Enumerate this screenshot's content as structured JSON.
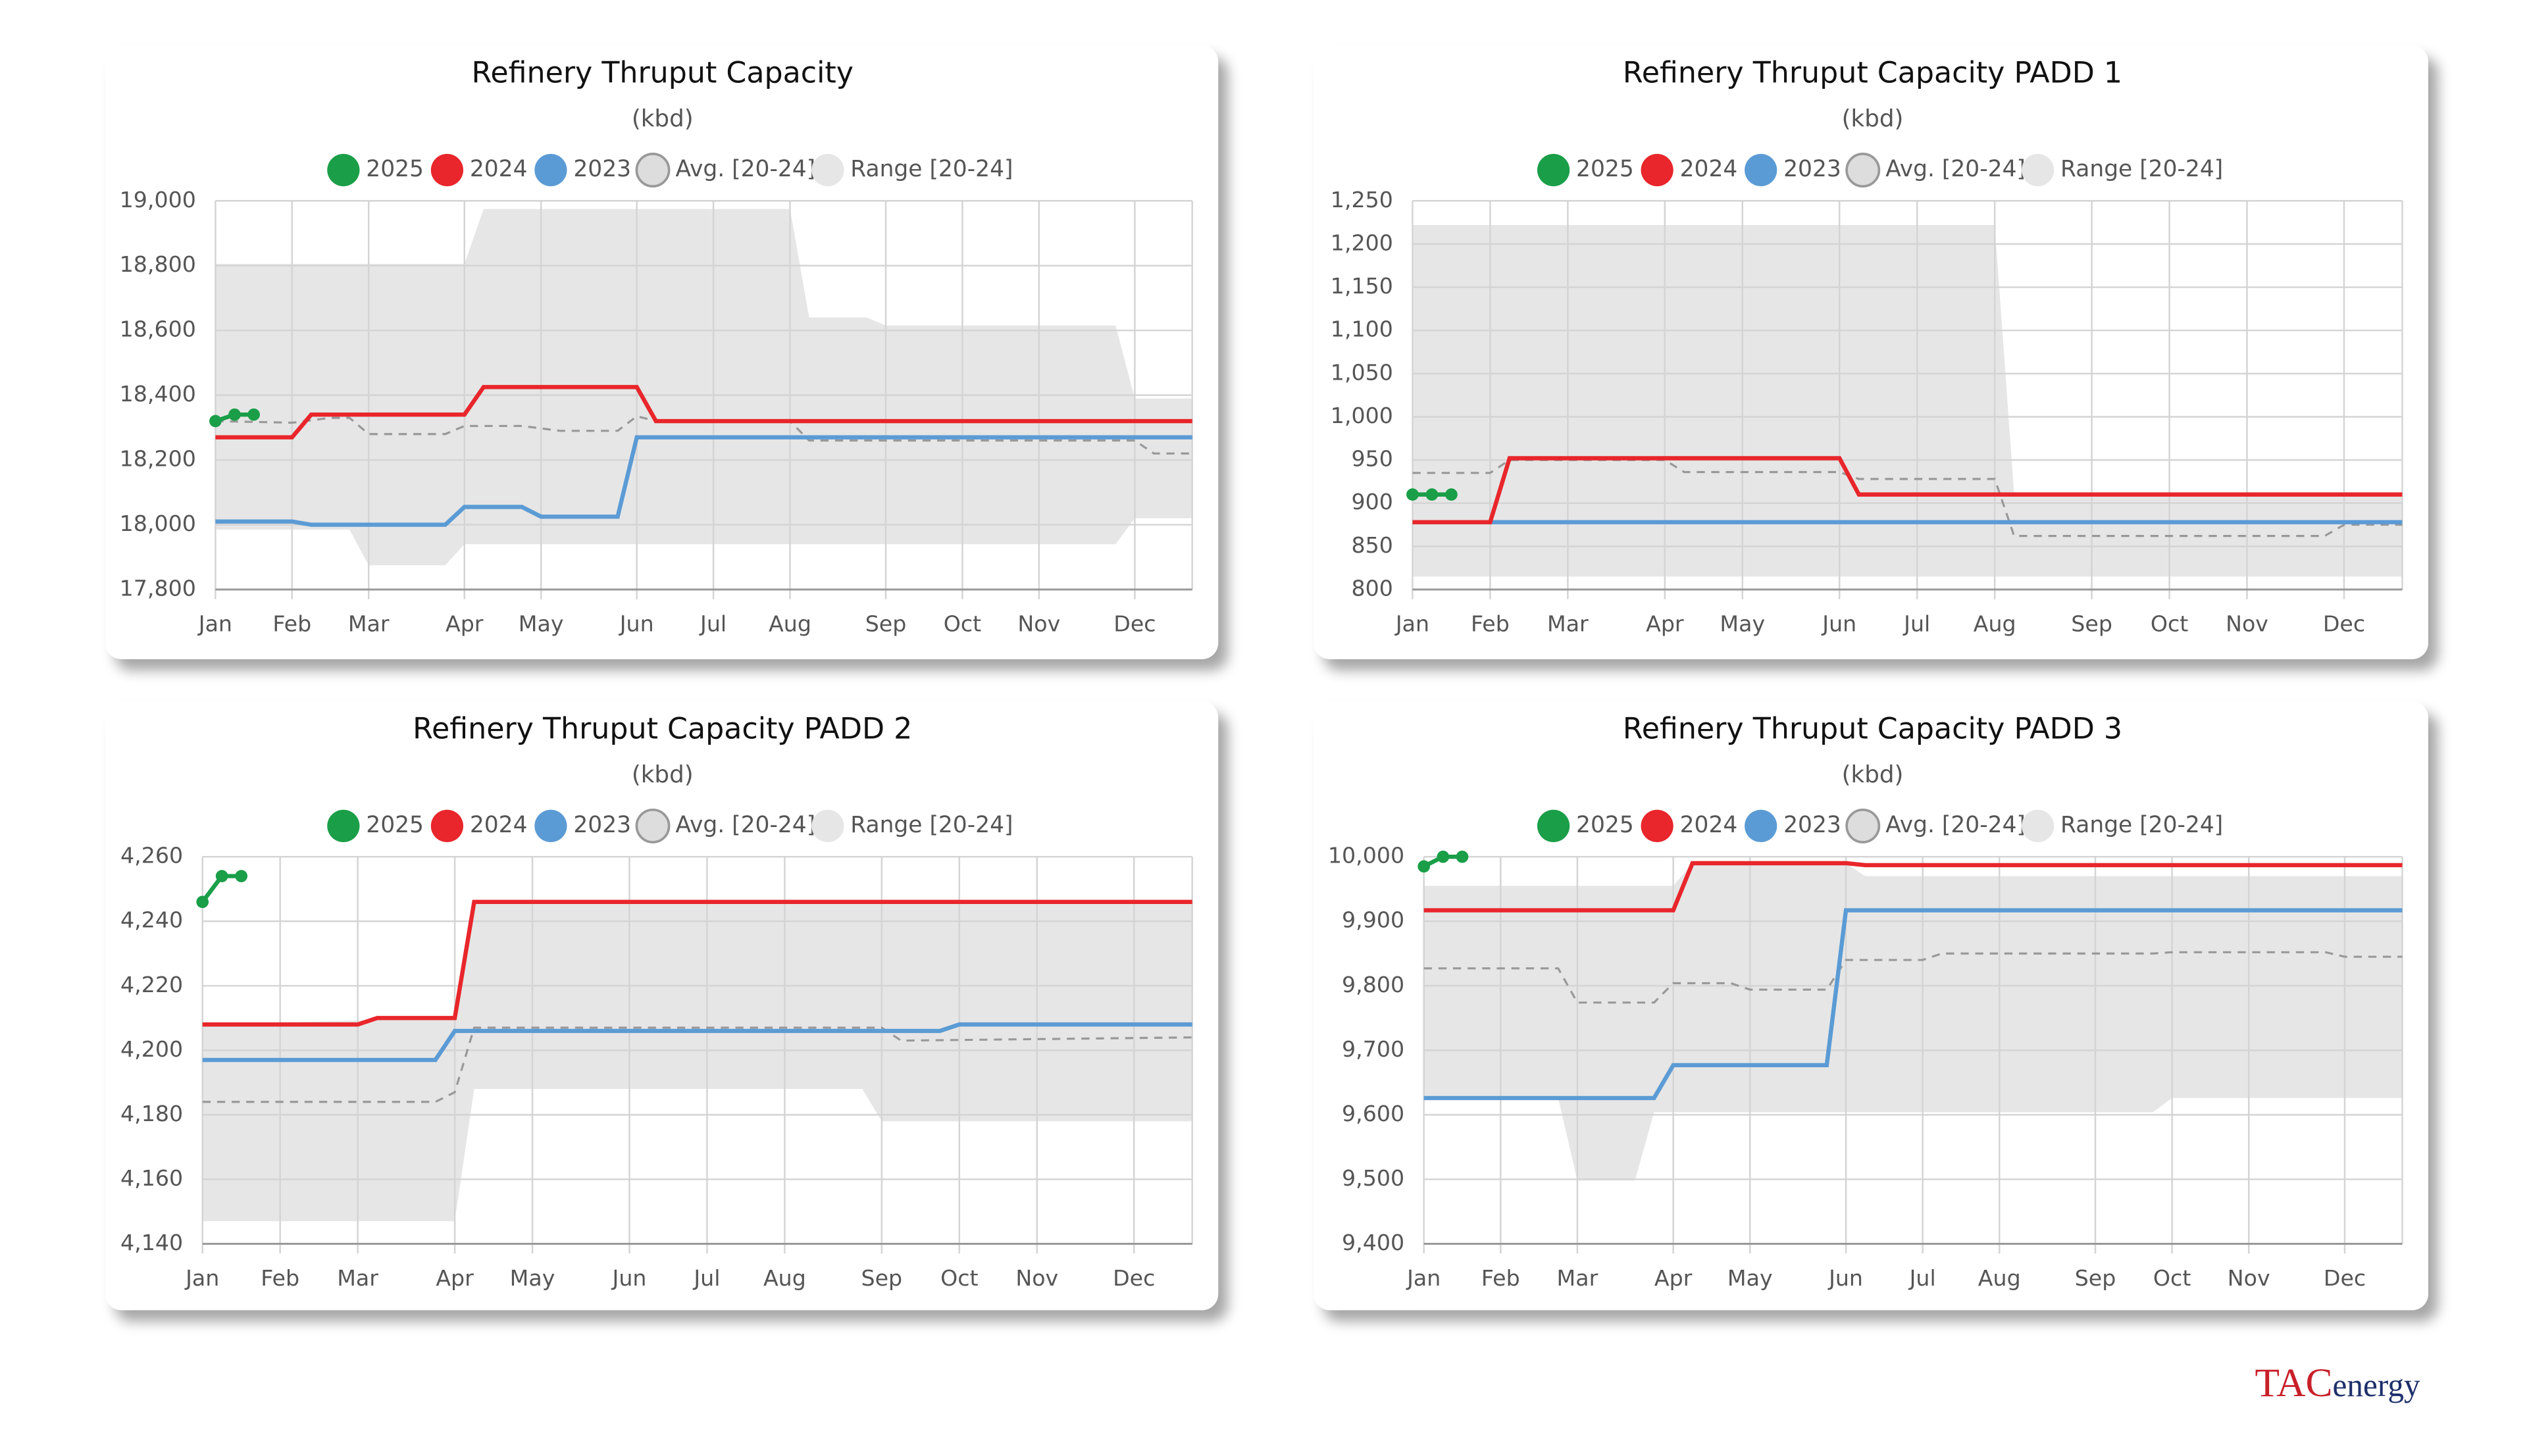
{
  "chart_data": [
    {
      "type": "line",
      "title": "Refinery Thruput Capacity",
      "subtitle": "(kbd)",
      "xlim": [
        0,
        51
      ],
      "xticks": [
        {
          "value": 0,
          "label": "Jan"
        },
        {
          "value": 4,
          "label": "Feb"
        },
        {
          "value": 8,
          "label": "Mar"
        },
        {
          "value": 13,
          "label": "Apr"
        },
        {
          "value": 17,
          "label": "May"
        },
        {
          "value": 22,
          "label": "Jun"
        },
        {
          "value": 26,
          "label": "Jul"
        },
        {
          "value": 30,
          "label": "Aug"
        },
        {
          "value": 35,
          "label": "Sep"
        },
        {
          "value": 39,
          "label": "Oct"
        },
        {
          "value": 43,
          "label": "Nov"
        },
        {
          "value": 48,
          "label": "Dec"
        }
      ],
      "ylim": [
        17800,
        19000
      ],
      "yticks": [
        {
          "value": 17800,
          "label": "17,800"
        },
        {
          "value": 18000,
          "label": "18,000"
        },
        {
          "value": 18200,
          "label": "18,200"
        },
        {
          "value": 18400,
          "label": "18,400"
        },
        {
          "value": 18600,
          "label": "18,600"
        },
        {
          "value": 18800,
          "label": "18,800"
        },
        {
          "value": 19000,
          "label": "19,000"
        }
      ],
      "grid": true,
      "series": [
        {
          "name": "2025",
          "color": "#1a9e48",
          "x": [
            0,
            1,
            2
          ],
          "values": [
            18320,
            18340,
            18340
          ],
          "markers": true
        },
        {
          "name": "2024",
          "color": "#e8262b",
          "x": [
            0,
            4,
            5,
            13,
            14,
            22,
            23,
            51
          ],
          "values": [
            18270,
            18270,
            18340,
            18340,
            18425,
            18425,
            18320,
            18320
          ]
        },
        {
          "name": "2023",
          "color": "#5b9bd5",
          "x": [
            0,
            4,
            5,
            12,
            13,
            16,
            17,
            21,
            22,
            51
          ],
          "values": [
            18010,
            18010,
            18000,
            18000,
            18055,
            18055,
            18025,
            18025,
            18270,
            18270
          ]
        },
        {
          "name": "Avg. [20-24]",
          "color": "#999999",
          "dashed": true,
          "x": [
            0,
            4,
            6,
            7,
            8,
            12,
            13,
            16,
            18,
            21,
            22,
            23,
            30,
            31,
            48,
            49,
            51
          ],
          "values": [
            18320,
            18315,
            18330,
            18330,
            18280,
            18280,
            18305,
            18305,
            18290,
            18290,
            18335,
            18320,
            18320,
            18260,
            18260,
            18220,
            18220
          ]
        },
        {
          "name": "Range [20-24]",
          "color": "#e6e6e6",
          "band": true,
          "upper": {
            "x": [
              0,
              13,
              14,
              30,
              31,
              34,
              35,
              47,
              48,
              51
            ],
            "values": [
              18805,
              18805,
              18975,
              18975,
              18640,
              18640,
              18615,
              18615,
              18390,
              18390
            ]
          },
          "lower": {
            "x": [
              0,
              7,
              8,
              12,
              13,
              47,
              48,
              51
            ],
            "values": [
              17985,
              17985,
              17875,
              17875,
              17940,
              17940,
              18020,
              18020
            ]
          }
        }
      ]
    },
    {
      "type": "line",
      "title": "Refinery Thruput Capacity PADD 1",
      "subtitle": "(kbd)",
      "xlim": [
        0,
        51
      ],
      "xticks": [
        {
          "value": 0,
          "label": "Jan"
        },
        {
          "value": 4,
          "label": "Feb"
        },
        {
          "value": 8,
          "label": "Mar"
        },
        {
          "value": 13,
          "label": "Apr"
        },
        {
          "value": 17,
          "label": "May"
        },
        {
          "value": 22,
          "label": "Jun"
        },
        {
          "value": 26,
          "label": "Jul"
        },
        {
          "value": 30,
          "label": "Aug"
        },
        {
          "value": 35,
          "label": "Sep"
        },
        {
          "value": 39,
          "label": "Oct"
        },
        {
          "value": 43,
          "label": "Nov"
        },
        {
          "value": 48,
          "label": "Dec"
        }
      ],
      "ylim": [
        800,
        1250
      ],
      "yticks": [
        800,
        850,
        900,
        950,
        {
          "value": 1000,
          "label": "1,000"
        },
        {
          "value": 1050,
          "label": "1,050"
        },
        {
          "value": 1100,
          "label": "1,100"
        },
        {
          "value": 1150,
          "label": "1,150"
        },
        {
          "value": 1200,
          "label": "1,200"
        },
        {
          "value": 1250,
          "label": "1,250"
        }
      ],
      "grid": true,
      "series": [
        {
          "name": "2025",
          "color": "#1a9e48",
          "x": [
            0,
            1,
            2
          ],
          "values": [
            910,
            910,
            910
          ],
          "markers": true
        },
        {
          "name": "2024",
          "color": "#e8262b",
          "x": [
            0,
            4,
            5,
            22,
            23,
            51
          ],
          "values": [
            878,
            878,
            952,
            952,
            910,
            910
          ]
        },
        {
          "name": "2023",
          "color": "#5b9bd5",
          "x": [
            0,
            51
          ],
          "values": [
            878,
            878
          ]
        },
        {
          "name": "Avg. [20-24]",
          "color": "#999999",
          "dashed": true,
          "x": [
            0,
            4,
            5,
            13,
            14,
            22,
            23,
            30,
            31,
            47,
            48,
            51
          ],
          "values": [
            935,
            935,
            950,
            950,
            936,
            936,
            928,
            928,
            862,
            862,
            875,
            875
          ]
        },
        {
          "name": "Range [20-24]",
          "color": "#e6e6e6",
          "band": true,
          "upper": {
            "x": [
              0,
              30,
              31,
              51
            ],
            "values": [
              1222,
              1222,
              910,
              910
            ]
          },
          "lower": {
            "x": [
              0,
              51
            ],
            "values": [
              815,
              815
            ]
          }
        }
      ]
    },
    {
      "type": "line",
      "title": "Refinery Thruput Capacity PADD 2",
      "subtitle": "(kbd)",
      "xlim": [
        0,
        51
      ],
      "xticks": [
        {
          "value": 0,
          "label": "Jan"
        },
        {
          "value": 4,
          "label": "Feb"
        },
        {
          "value": 8,
          "label": "Mar"
        },
        {
          "value": 13,
          "label": "Apr"
        },
        {
          "value": 17,
          "label": "May"
        },
        {
          "value": 22,
          "label": "Jun"
        },
        {
          "value": 26,
          "label": "Jul"
        },
        {
          "value": 30,
          "label": "Aug"
        },
        {
          "value": 35,
          "label": "Sep"
        },
        {
          "value": 39,
          "label": "Oct"
        },
        {
          "value": 43,
          "label": "Nov"
        },
        {
          "value": 48,
          "label": "Dec"
        }
      ],
      "ylim": [
        4140,
        4260
      ],
      "yticks": [
        {
          "value": 4140,
          "label": "4,140"
        },
        {
          "value": 4160,
          "label": "4,160"
        },
        {
          "value": 4180,
          "label": "4,180"
        },
        {
          "value": 4200,
          "label": "4,200"
        },
        {
          "value": 4220,
          "label": "4,220"
        },
        {
          "value": 4240,
          "label": "4,240"
        },
        {
          "value": 4260,
          "label": "4,260"
        }
      ],
      "grid": true,
      "series": [
        {
          "name": "2025",
          "color": "#1a9e48",
          "x": [
            0,
            1,
            2
          ],
          "values": [
            4246,
            4254,
            4254
          ],
          "markers": true
        },
        {
          "name": "2024",
          "color": "#e8262b",
          "x": [
            0,
            8,
            9,
            13,
            14,
            51
          ],
          "values": [
            4208,
            4208,
            4210,
            4210,
            4246,
            4246
          ]
        },
        {
          "name": "2023",
          "color": "#5b9bd5",
          "x": [
            0,
            12,
            13,
            38,
            39,
            51
          ],
          "values": [
            4197,
            4197,
            4206,
            4206,
            4208,
            4208
          ]
        },
        {
          "name": "Avg. [20-24]",
          "color": "#999999",
          "dashed": true,
          "x": [
            0,
            12,
            13,
            14,
            35,
            36,
            51
          ],
          "values": [
            4184,
            4184,
            4187,
            4207,
            4207,
            4203,
            4204
          ]
        },
        {
          "name": "Range [20-24]",
          "color": "#e6e6e6",
          "band": true,
          "upper": {
            "x": [
              0,
              13,
              14,
              51
            ],
            "values": [
              4208,
              4210,
              4246,
              4246
            ]
          },
          "lower": {
            "x": [
              0,
              13,
              14,
              34,
              35,
              51
            ],
            "values": [
              4147,
              4147,
              4188,
              4188,
              4178,
              4178
            ]
          }
        }
      ]
    },
    {
      "type": "line",
      "title": "Refinery Thruput Capacity PADD 3",
      "subtitle": "(kbd)",
      "xlim": [
        0,
        51
      ],
      "xticks": [
        {
          "value": 0,
          "label": "Jan"
        },
        {
          "value": 4,
          "label": "Feb"
        },
        {
          "value": 8,
          "label": "Mar"
        },
        {
          "value": 13,
          "label": "Apr"
        },
        {
          "value": 17,
          "label": "May"
        },
        {
          "value": 22,
          "label": "Jun"
        },
        {
          "value": 26,
          "label": "Jul"
        },
        {
          "value": 30,
          "label": "Aug"
        },
        {
          "value": 35,
          "label": "Sep"
        },
        {
          "value": 39,
          "label": "Oct"
        },
        {
          "value": 43,
          "label": "Nov"
        },
        {
          "value": 48,
          "label": "Dec"
        }
      ],
      "ylim": [
        9400,
        10000
      ],
      "yticks": [
        {
          "value": 9400,
          "label": "9,400"
        },
        {
          "value": 9500,
          "label": "9,500"
        },
        {
          "value": 9600,
          "label": "9,600"
        },
        {
          "value": 9700,
          "label": "9,700"
        },
        {
          "value": 9800,
          "label": "9,800"
        },
        {
          "value": 9900,
          "label": "9,900"
        },
        {
          "value": 10000,
          "label": "10,000"
        }
      ],
      "grid": true,
      "series": [
        {
          "name": "2025",
          "color": "#1a9e48",
          "x": [
            0,
            1,
            2
          ],
          "values": [
            9985,
            10000,
            10000
          ],
          "markers": true
        },
        {
          "name": "2024",
          "color": "#e8262b",
          "x": [
            0,
            13,
            14,
            22,
            23,
            51
          ],
          "values": [
            9917,
            9917,
            9990,
            9990,
            9987,
            9987
          ]
        },
        {
          "name": "2023",
          "color": "#5b9bd5",
          "x": [
            0,
            12,
            13,
            21,
            22,
            51
          ],
          "values": [
            9626,
            9626,
            9677,
            9677,
            9917,
            9917
          ]
        },
        {
          "name": "Avg. [20-24]",
          "color": "#999999",
          "dashed": true,
          "x": [
            0,
            7,
            8,
            12,
            13,
            16,
            17,
            21,
            22,
            26,
            27,
            38,
            39,
            47,
            48,
            51
          ],
          "values": [
            9827,
            9827,
            9774,
            9774,
            9804,
            9804,
            9794,
            9794,
            9840,
            9840,
            9850,
            9850,
            9852,
            9852,
            9845,
            9845
          ]
        },
        {
          "name": "Range [20-24]",
          "color": "#e6e6e6",
          "band": true,
          "upper": {
            "x": [
              0,
              13,
              14,
              22,
              23,
              51
            ],
            "values": [
              9955,
              9955,
              9990,
              9990,
              9970,
              9970
            ]
          },
          "lower": {
            "x": [
              0,
              7,
              8,
              11,
              12,
              38,
              39,
              51
            ],
            "values": [
              9626,
              9626,
              9498,
              9498,
              9604,
              9604,
              9626,
              9626
            ]
          }
        }
      ]
    }
  ],
  "logo": {
    "brand": "TAC",
    "suffix": "energy"
  }
}
